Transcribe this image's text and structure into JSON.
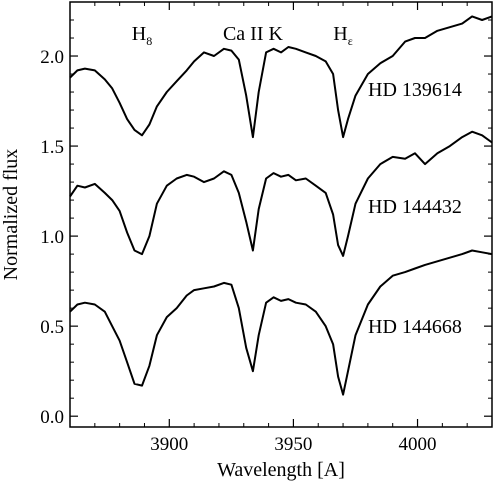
{
  "chart_data": {
    "type": "line",
    "xlabel": "Wavelength [A]",
    "ylabel": "Normalized flux",
    "xlim": [
      3860,
      4030
    ],
    "ylim": [
      -0.06,
      2.3
    ],
    "xticks": [
      3900,
      3950,
      4000
    ],
    "yticks": [
      0.0,
      0.5,
      1.0,
      1.5,
      2.0
    ],
    "xtick_labels": [
      "3900",
      "3950",
      "4000"
    ],
    "ytick_labels": [
      "0.0",
      "0.5",
      "1.0",
      "1.5",
      "2.0"
    ],
    "grid": false,
    "line_annotations": [
      {
        "main": "H",
        "sub": "8",
        "x": 3889
      },
      {
        "main": "Ca II K",
        "sub": "",
        "x": 3933.7
      },
      {
        "main": "H",
        "sub": "ε",
        "x": 3970
      }
    ],
    "series": [
      {
        "name": "HD 139614",
        "x": [
          3860,
          3863,
          3866,
          3870,
          3874,
          3877,
          3880,
          3883,
          3886,
          3889,
          3892,
          3895,
          3899,
          3903,
          3907,
          3910,
          3914,
          3918,
          3922,
          3925,
          3928,
          3931,
          3933.7,
          3936,
          3939,
          3942,
          3945,
          3948,
          3951,
          3955,
          3959,
          3963,
          3966,
          3968,
          3970,
          3972,
          3975,
          3980,
          3985,
          3990,
          3995,
          3999,
          4003,
          4008,
          4013,
          4018,
          4022,
          4026,
          4030
        ],
        "y": [
          1.88,
          1.92,
          1.93,
          1.92,
          1.87,
          1.82,
          1.74,
          1.65,
          1.59,
          1.56,
          1.62,
          1.72,
          1.8,
          1.86,
          1.92,
          1.97,
          2.02,
          2.0,
          2.04,
          2.03,
          1.98,
          1.78,
          1.55,
          1.8,
          2.02,
          2.04,
          2.02,
          2.05,
          2.04,
          2.02,
          2.0,
          1.97,
          1.9,
          1.7,
          1.55,
          1.65,
          1.78,
          1.9,
          1.96,
          2.0,
          2.08,
          2.1,
          2.1,
          2.14,
          2.16,
          2.18,
          2.22,
          2.2,
          2.22
        ]
      },
      {
        "name": "HD 144432",
        "x": [
          3860,
          3863,
          3866,
          3870,
          3874,
          3877,
          3880,
          3883,
          3886,
          3889,
          3892,
          3895,
          3899,
          3903,
          3907,
          3910,
          3914,
          3918,
          3922,
          3925,
          3928,
          3931,
          3933.7,
          3936,
          3939,
          3942,
          3945,
          3948,
          3951,
          3955,
          3959,
          3963,
          3966,
          3968,
          3970,
          3972,
          3975,
          3980,
          3985,
          3990,
          3995,
          3999,
          4003,
          4008,
          4013,
          4018,
          4022,
          4026,
          4030
        ],
        "y": [
          1.22,
          1.28,
          1.27,
          1.29,
          1.24,
          1.2,
          1.14,
          1.02,
          0.92,
          0.9,
          1.0,
          1.18,
          1.28,
          1.32,
          1.34,
          1.33,
          1.3,
          1.32,
          1.36,
          1.34,
          1.24,
          1.08,
          0.92,
          1.15,
          1.32,
          1.35,
          1.33,
          1.34,
          1.31,
          1.32,
          1.28,
          1.24,
          1.12,
          0.95,
          0.89,
          1.0,
          1.18,
          1.32,
          1.4,
          1.44,
          1.43,
          1.46,
          1.4,
          1.46,
          1.5,
          1.55,
          1.58,
          1.56,
          1.52
        ]
      },
      {
        "name": "HD 144668",
        "x": [
          3860,
          3863,
          3866,
          3870,
          3874,
          3877,
          3880,
          3883,
          3886,
          3889,
          3892,
          3895,
          3899,
          3903,
          3907,
          3910,
          3914,
          3918,
          3922,
          3925,
          3928,
          3931,
          3933.7,
          3936,
          3939,
          3942,
          3945,
          3948,
          3951,
          3955,
          3959,
          3963,
          3966,
          3968,
          3970,
          3972,
          3975,
          3980,
          3985,
          3990,
          3995,
          3999,
          4003,
          4008,
          4013,
          4018,
          4022,
          4026,
          4030
        ],
        "y": [
          0.58,
          0.62,
          0.63,
          0.62,
          0.58,
          0.5,
          0.42,
          0.3,
          0.18,
          0.17,
          0.28,
          0.45,
          0.55,
          0.6,
          0.67,
          0.7,
          0.71,
          0.72,
          0.74,
          0.73,
          0.6,
          0.38,
          0.25,
          0.45,
          0.63,
          0.66,
          0.64,
          0.65,
          0.63,
          0.62,
          0.58,
          0.5,
          0.4,
          0.22,
          0.12,
          0.25,
          0.45,
          0.62,
          0.72,
          0.78,
          0.8,
          0.82,
          0.84,
          0.86,
          0.88,
          0.9,
          0.92,
          0.91,
          0.9
        ]
      }
    ]
  }
}
